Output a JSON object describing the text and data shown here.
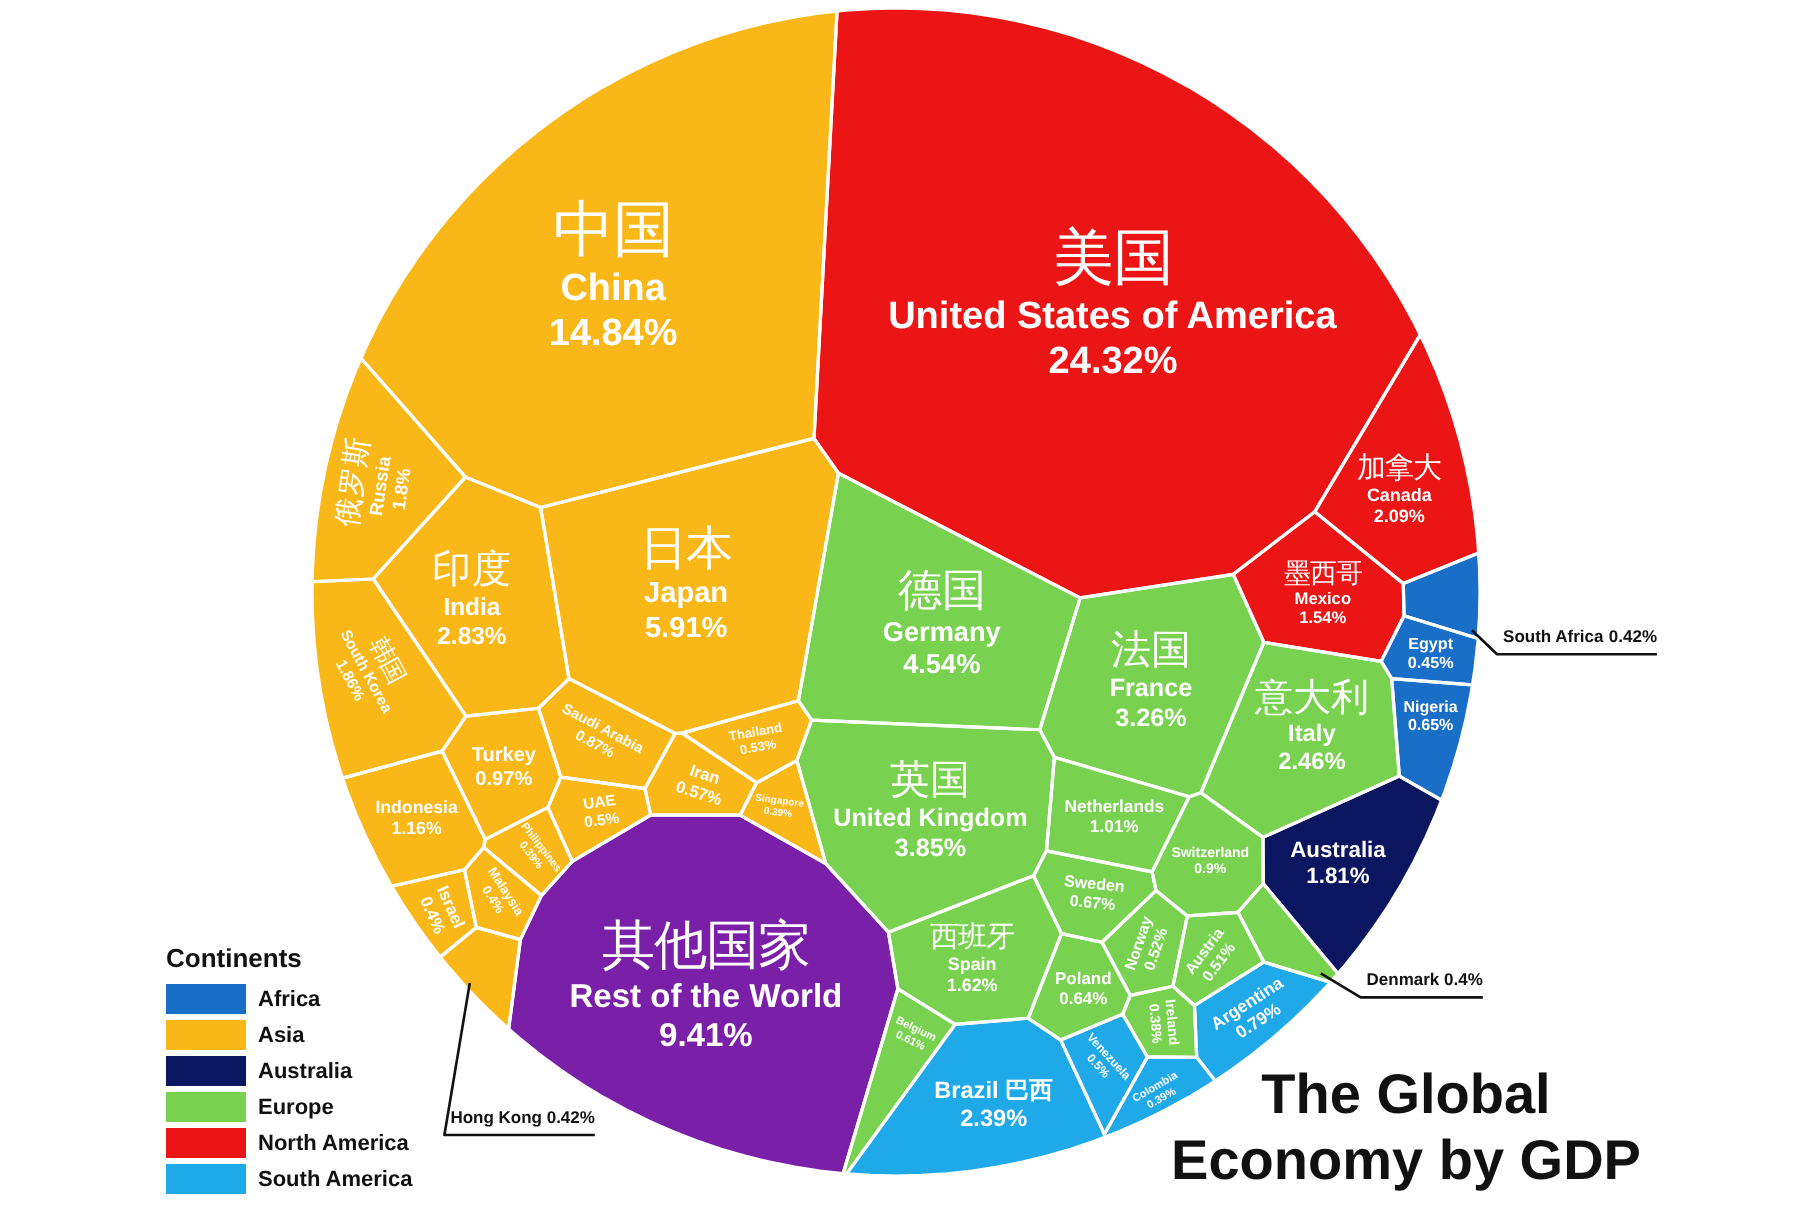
{
  "chart_data": {
    "type": "other",
    "title": "The Global Economy by GDP",
    "legend_title": "Continents",
    "legend": "bottom left",
    "categories": [
      "South Africa",
      "Egypt",
      "Nigeria",
      "中国\nChina",
      "日本\nJapan",
      "印度\nIndia",
      "韩国\nSouth Korea",
      "俄罗斯\nRussia",
      "Indonesia",
      "Turkey",
      "Saudi Arabia",
      "Thailand",
      "Iran",
      "UAE",
      "Singapore",
      "Israel",
      "Hong Kong",
      "Malaysia",
      "Philippines",
      "Australia",
      "德国\nGermany",
      "英国\nUnited Kingdom",
      "法国\nFrance",
      "意大利\nItaly",
      "西班牙\nSpain",
      "Netherlands",
      "Switzerland",
      "Sweden",
      "Poland",
      "Belgium",
      "Norway",
      "Austria",
      "Denmark",
      "Ireland",
      "美国\nUnited States of America",
      "加拿大\nCanada",
      "墨西哥\nMexico",
      "Brazil 巴西",
      "Argentina",
      "Venezuela",
      "Colombia",
      "其他国家\nRest of the World"
    ],
    "series": [
      {
        "name": "Africa",
        "color": "#196ec8",
        "values": [
          0.42,
          0.45,
          0.65,
          null,
          null,
          null,
          null,
          null,
          null,
          null,
          null,
          null,
          null,
          null,
          null,
          null,
          null,
          null,
          null,
          null,
          null,
          null,
          null,
          null,
          null,
          null,
          null,
          null,
          null,
          null,
          null,
          null,
          null,
          null,
          null,
          null,
          null,
          null,
          null,
          null,
          null,
          null
        ],
        "value_labels": [
          "0.42%",
          "0.45%",
          "0.65%",
          null,
          null,
          null,
          null,
          null,
          null,
          null,
          null,
          null,
          null,
          null,
          null,
          null,
          null,
          null,
          null,
          null,
          null,
          null,
          null,
          null,
          null,
          null,
          null,
          null,
          null,
          null,
          null,
          null,
          null,
          null,
          null,
          null,
          null,
          null,
          null,
          null,
          null,
          null
        ]
      },
      {
        "name": "Asia",
        "color": "#f9b817",
        "values": [
          null,
          null,
          null,
          14.84,
          5.91,
          2.83,
          1.86,
          1.8,
          1.16,
          0.97,
          0.87,
          0.53,
          0.57,
          0.5,
          0.39,
          0.4,
          0.42,
          0.4,
          0.39,
          null,
          null,
          null,
          null,
          null,
          null,
          null,
          null,
          null,
          null,
          null,
          null,
          null,
          null,
          null,
          null,
          null,
          null,
          null,
          null,
          null,
          null,
          null
        ],
        "value_labels": [
          null,
          null,
          null,
          "14.84%",
          "5.91%",
          "2.83%",
          "1.86%",
          "1.8%",
          "1.16%",
          "0.97%",
          "0.87%",
          "0.53%",
          "0.57%",
          "0.5%",
          "0.39%",
          "0.4%",
          "0.42%",
          "0.4%",
          "0.39%",
          null,
          null,
          null,
          null,
          null,
          null,
          null,
          null,
          null,
          null,
          null,
          null,
          null,
          null,
          null,
          null,
          null,
          null,
          null,
          null,
          null,
          null,
          null
        ]
      },
      {
        "name": "Australia",
        "color": "#0b1560",
        "values": [
          null,
          null,
          null,
          null,
          null,
          null,
          null,
          null,
          null,
          null,
          null,
          null,
          null,
          null,
          null,
          null,
          null,
          null,
          null,
          1.81,
          null,
          null,
          null,
          null,
          null,
          null,
          null,
          null,
          null,
          null,
          null,
          null,
          null,
          null,
          null,
          null,
          null,
          null,
          null,
          null,
          null,
          null
        ],
        "value_labels": [
          null,
          null,
          null,
          null,
          null,
          null,
          null,
          null,
          null,
          null,
          null,
          null,
          null,
          null,
          null,
          null,
          null,
          null,
          null,
          "1.81%",
          null,
          null,
          null,
          null,
          null,
          null,
          null,
          null,
          null,
          null,
          null,
          null,
          null,
          null,
          null,
          null,
          null,
          null,
          null,
          null,
          null,
          null
        ]
      },
      {
        "name": "Europe",
        "color": "#79d24f",
        "values": [
          null,
          null,
          null,
          null,
          null,
          null,
          null,
          null,
          null,
          null,
          null,
          null,
          null,
          null,
          null,
          null,
          null,
          null,
          null,
          null,
          4.54,
          3.85,
          3.26,
          2.46,
          1.62,
          1.01,
          0.9,
          0.67,
          0.64,
          0.61,
          0.52,
          0.51,
          0.4,
          0.38,
          null,
          null,
          null,
          null,
          null,
          null,
          null,
          null
        ],
        "value_labels": [
          null,
          null,
          null,
          null,
          null,
          null,
          null,
          null,
          null,
          null,
          null,
          null,
          null,
          null,
          null,
          null,
          null,
          null,
          null,
          null,
          "4.54%",
          "3.85%",
          "3.26%",
          "2.46%",
          "1.62%",
          "1.01%",
          "0.9%",
          "0.67%",
          "0.64%",
          "0.61%",
          "0.52%",
          "0.51%",
          "0.4%",
          "0.38%",
          null,
          null,
          null,
          null,
          null,
          null,
          null,
          null
        ]
      },
      {
        "name": "North America",
        "color": "#ec1515",
        "values": [
          null,
          null,
          null,
          null,
          null,
          null,
          null,
          null,
          null,
          null,
          null,
          null,
          null,
          null,
          null,
          null,
          null,
          null,
          null,
          null,
          null,
          null,
          null,
          null,
          null,
          null,
          null,
          null,
          null,
          null,
          null,
          null,
          null,
          null,
          24.32,
          2.09,
          1.54,
          null,
          null,
          null,
          null,
          null
        ],
        "value_labels": [
          null,
          null,
          null,
          null,
          null,
          null,
          null,
          null,
          null,
          null,
          null,
          null,
          null,
          null,
          null,
          null,
          null,
          null,
          null,
          null,
          null,
          null,
          null,
          null,
          null,
          null,
          null,
          null,
          null,
          null,
          null,
          null,
          null,
          null,
          "24.32%",
          "2.09%",
          "1.54%",
          null,
          null,
          null,
          null,
          null
        ]
      },
      {
        "name": "South America",
        "color": "#1fa9e9",
        "values": [
          null,
          null,
          null,
          null,
          null,
          null,
          null,
          null,
          null,
          null,
          null,
          null,
          null,
          null,
          null,
          null,
          null,
          null,
          null,
          null,
          null,
          null,
          null,
          null,
          null,
          null,
          null,
          null,
          null,
          null,
          null,
          null,
          null,
          null,
          null,
          null,
          null,
          2.39,
          0.79,
          0.5,
          0.39,
          null
        ],
        "value_labels": [
          null,
          null,
          null,
          null,
          null,
          null,
          null,
          null,
          null,
          null,
          null,
          null,
          null,
          null,
          null,
          null,
          null,
          null,
          null,
          null,
          null,
          null,
          null,
          null,
          null,
          null,
          null,
          null,
          null,
          null,
          null,
          null,
          null,
          null,
          null,
          null,
          null,
          "2.39%",
          "0.79%",
          "0.5%",
          "0.39%",
          null
        ]
      },
      {
        "color": "#7a1fa8",
        "values": [
          null,
          null,
          null,
          null,
          null,
          null,
          null,
          null,
          null,
          null,
          null,
          null,
          null,
          null,
          null,
          null,
          null,
          null,
          null,
          null,
          null,
          null,
          null,
          null,
          null,
          null,
          null,
          null,
          null,
          null,
          null,
          null,
          null,
          null,
          null,
          null,
          null,
          null,
          null,
          null,
          null,
          9.41
        ],
        "value_labels": [
          null,
          null,
          null,
          null,
          null,
          null,
          null,
          null,
          null,
          null,
          null,
          null,
          null,
          null,
          null,
          null,
          null,
          null,
          null,
          null,
          null,
          null,
          null,
          null,
          null,
          null,
          null,
          null,
          null,
          null,
          null,
          null,
          null,
          null,
          null,
          null,
          null,
          null,
          null,
          null,
          null,
          "9.41%"
        ]
      }
    ]
  }
}
